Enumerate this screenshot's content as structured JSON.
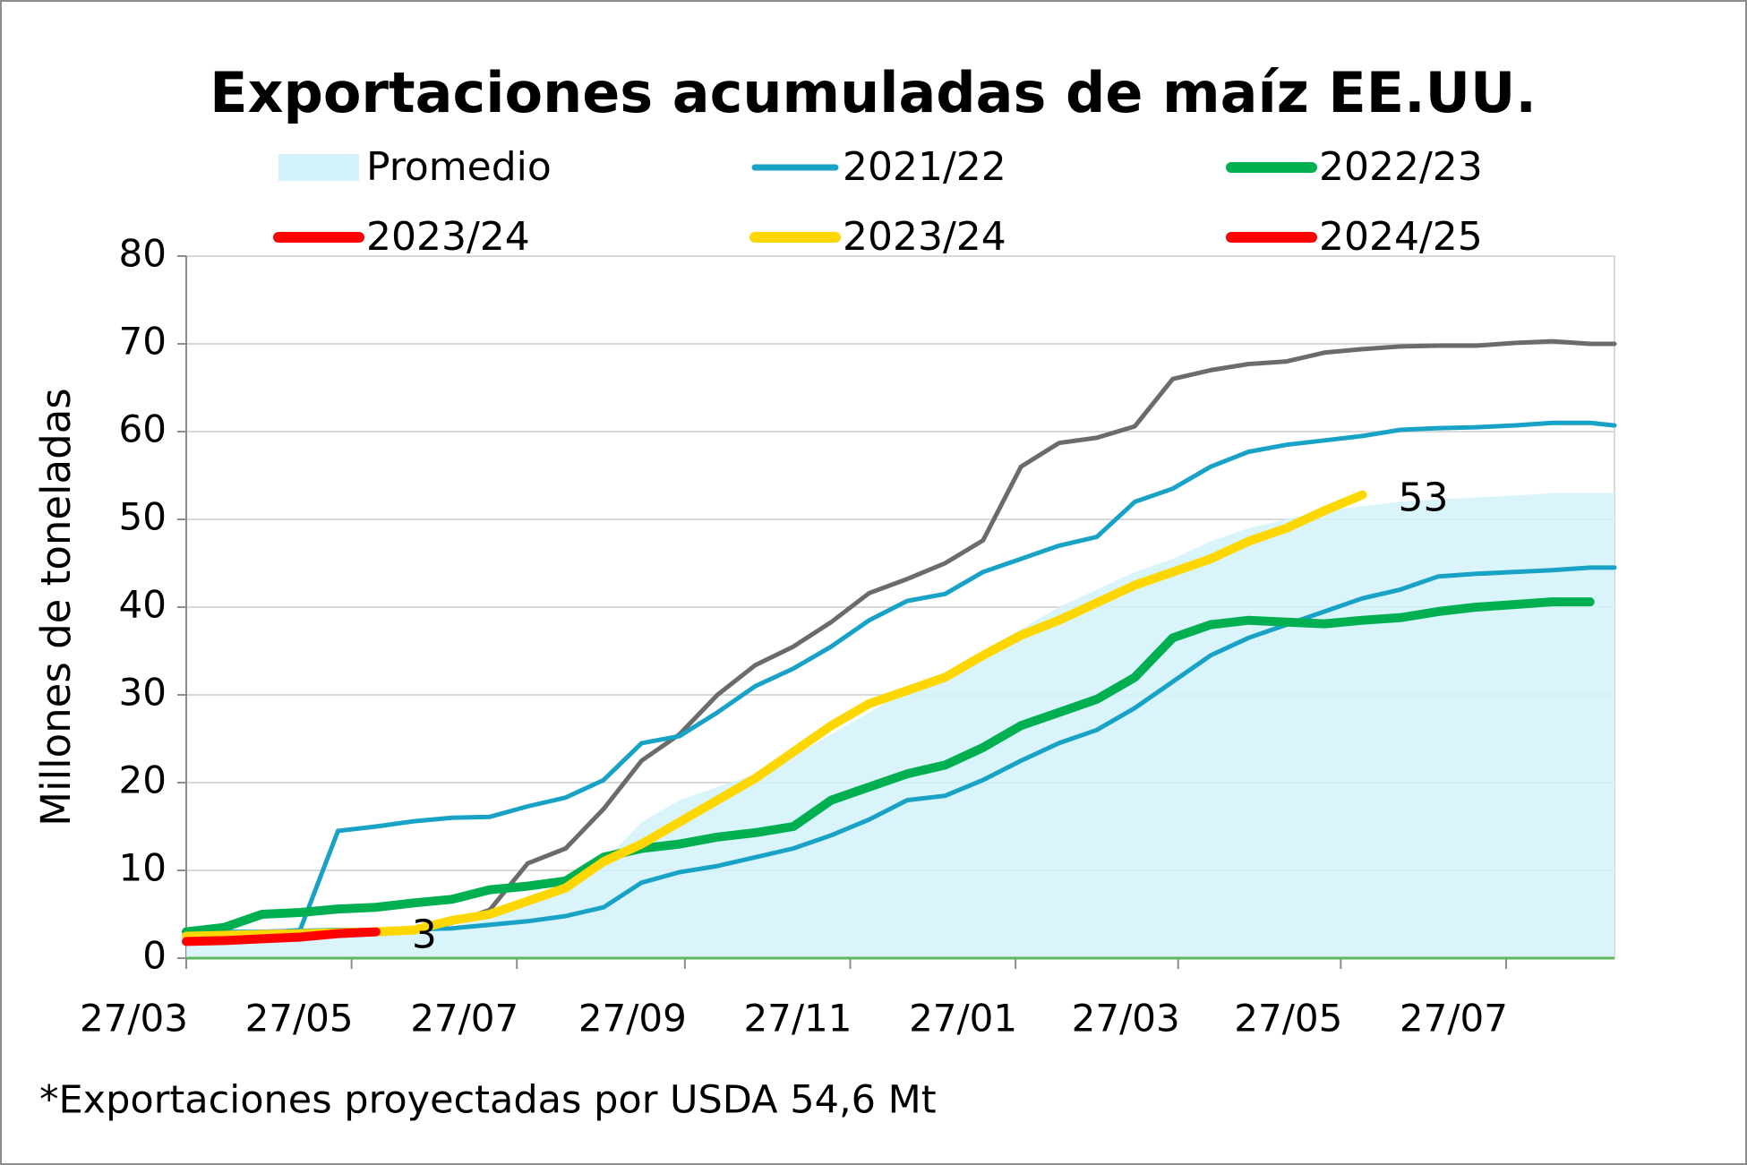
{
  "chart_data": {
    "type": "line",
    "title": "Exportaciones acumuladas de maíz EE.UU.",
    "y_label": "Millones de toneladas",
    "footnote": "*Exportaciones proyectadas por USDA 54,6 Mt",
    "x": [
      0,
      14,
      28,
      42,
      56,
      70,
      84,
      98,
      112,
      126,
      140,
      154,
      168,
      182,
      196,
      210,
      224,
      238,
      252,
      266,
      280,
      294,
      308,
      322,
      336,
      350,
      364,
      378,
      392,
      406,
      420,
      434,
      448,
      462,
      476,
      490,
      504,
      518,
      527
    ],
    "xlim": [
      0,
      527
    ],
    "xticks": [
      {
        "value": 0,
        "label": "27/03"
      },
      {
        "value": 61,
        "label": "27/05"
      },
      {
        "value": 122,
        "label": "27/07"
      },
      {
        "value": 184,
        "label": "27/09"
      },
      {
        "value": 245,
        "label": "27/11"
      },
      {
        "value": 306,
        "label": "27/01"
      },
      {
        "value": 366,
        "label": "27/03"
      },
      {
        "value": 426,
        "label": "27/05"
      },
      {
        "value": 487,
        "label": "27/07"
      }
    ],
    "ylim": [
      0,
      80
    ],
    "yticks": [
      0,
      10,
      20,
      30,
      40,
      50,
      60,
      70,
      80
    ],
    "grid": true,
    "series": [
      {
        "name": "Promedio",
        "type": "area",
        "color": "#d4f2fa",
        "values": [
          2.5,
          2.6,
          2.7,
          2.8,
          2.9,
          3,
          3.2,
          3.5,
          5,
          6.5,
          8.5,
          11,
          15.5,
          18,
          19.5,
          21,
          23,
          25.5,
          28,
          30.5,
          32.5,
          35,
          37.5,
          40,
          42,
          44,
          45.5,
          47.5,
          49,
          50,
          51,
          51.5,
          52,
          52.3,
          52.5,
          52.7,
          53,
          53,
          53
        ]
      },
      {
        "name": null,
        "color": "#6b6b6b",
        "values": [
          2.8,
          2.9,
          3,
          3.1,
          3.2,
          3.2,
          3.3,
          4,
          5.5,
          10.8,
          12.5,
          17,
          22.5,
          25.5,
          30,
          33.4,
          35.5,
          38.3,
          41.6,
          43.2,
          45,
          47.6,
          56,
          58.7,
          59.3,
          60.6,
          66,
          67,
          67.7,
          68,
          69,
          69.4,
          69.7,
          69.8,
          69.8,
          70.1,
          70.3,
          70,
          70
        ]
      },
      {
        "name": null,
        "color": "#17a2c6",
        "values": [
          2.5,
          2.7,
          2.9,
          3.2,
          14.5,
          15,
          15.6,
          16,
          16.1,
          17.3,
          18.3,
          20.3,
          24.5,
          25.3,
          28,
          31,
          33,
          35.5,
          38.5,
          40.7,
          41.5,
          44,
          45.5,
          47,
          48,
          52,
          53.5,
          56,
          57.7,
          58.5,
          59,
          59.5,
          60.2,
          60.4,
          60.5,
          60.7,
          61,
          61,
          60.7
        ]
      },
      {
        "name": "2021/22",
        "color": "#17a2c6",
        "values": [
          3,
          3,
          3,
          3.1,
          3.2,
          3.2,
          3.3,
          3.4,
          3.8,
          4.2,
          4.8,
          5.8,
          8.6,
          9.8,
          10.5,
          11.5,
          12.5,
          14,
          15.8,
          18,
          18.5,
          20.3,
          22.5,
          24.5,
          26,
          28.5,
          31.5,
          34.5,
          36.5,
          38,
          39.5,
          41,
          42,
          43.5,
          43.8,
          44,
          44.2,
          44.5,
          44.5
        ]
      },
      {
        "name": "2022/23",
        "color": "#00b050",
        "values": [
          3,
          3.5,
          5,
          5.2,
          5.6,
          5.8,
          6.3,
          6.7,
          7.8,
          8.2,
          8.8,
          11.5,
          12.5,
          13,
          13.8,
          14.3,
          15,
          18,
          19.5,
          21,
          22,
          24,
          26.5,
          28,
          29.5,
          32,
          36.5,
          38,
          38.5,
          38.3,
          38.1,
          38.5,
          38.8,
          39.5,
          40,
          40.3,
          40.6,
          40.6,
          null
        ]
      },
      {
        "name": "2023/24",
        "color": "#ff0000",
        "values": [
          null,
          null,
          null,
          null,
          null,
          null,
          null,
          null,
          null,
          null,
          null,
          null,
          null,
          null,
          null,
          null,
          null,
          null,
          null,
          null,
          null,
          null,
          null,
          null,
          null,
          null,
          null,
          null,
          null,
          null,
          null,
          null,
          null,
          null,
          null,
          null,
          null,
          null,
          null
        ]
      },
      {
        "name": "2023/24",
        "color": "#ffd700",
        "values": [
          2.5,
          2.6,
          2.7,
          2.8,
          2.9,
          3,
          3.2,
          4.3,
          5,
          6.5,
          8,
          11,
          13,
          15.5,
          18,
          20.5,
          23.5,
          26.5,
          29,
          30.5,
          32,
          34.5,
          36.8,
          38.5,
          40.5,
          42.5,
          44,
          45.5,
          47.5,
          49,
          51,
          52.8,
          null,
          null,
          null,
          null,
          null,
          null,
          null
        ],
        "value_labels": [
          null,
          null,
          null,
          null,
          null,
          null,
          null,
          null,
          null,
          null,
          null,
          null,
          null,
          null,
          null,
          null,
          null,
          null,
          null,
          null,
          null,
          null,
          null,
          null,
          null,
          null,
          null,
          null,
          null,
          null,
          null,
          "53",
          null,
          null,
          null,
          null,
          null,
          null,
          null
        ]
      },
      {
        "name": "2024/25",
        "color": "#ff0000",
        "values": [
          1.9,
          2,
          2.2,
          2.4,
          2.8,
          3,
          null,
          null,
          null,
          null,
          null,
          null,
          null,
          null,
          null,
          null,
          null,
          null,
          null,
          null,
          null,
          null,
          null,
          null,
          null,
          null,
          null,
          null,
          null,
          null,
          null,
          null,
          null,
          null,
          null,
          null,
          null,
          null,
          null
        ],
        "value_labels": [
          null,
          null,
          null,
          null,
          null,
          "3",
          null,
          null,
          null,
          null,
          null,
          null,
          null,
          null,
          null,
          null,
          null,
          null,
          null,
          null,
          null,
          null,
          null,
          null,
          null,
          null,
          null,
          null,
          null,
          null,
          null,
          null,
          null,
          null,
          null,
          null,
          null,
          null,
          null
        ]
      }
    ]
  }
}
